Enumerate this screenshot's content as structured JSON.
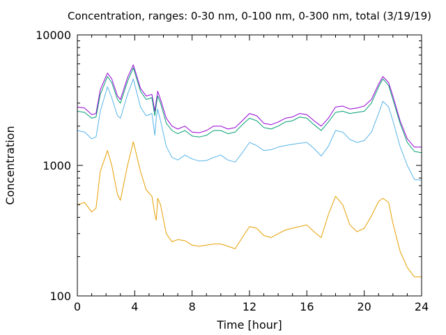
{
  "chart_data": {
    "type": "line",
    "title": "Concentration, ranges: 0-30 nm, 0-100 nm, 0-300 nm, total (3/19/19)",
    "xlabel": "Time [hour]",
    "ylabel": "Concentration",
    "xlim": [
      0,
      24
    ],
    "ylim": [
      100,
      10000
    ],
    "yscale": "log",
    "grid": false,
    "x_ticks": [
      0,
      4,
      8,
      12,
      16,
      20,
      24
    ],
    "x_tick_labels": [
      "0",
      "4",
      "8",
      "12",
      "16",
      "20",
      "24"
    ],
    "y_ticks": [
      100,
      1000,
      10000
    ],
    "y_tick_labels": [
      "100",
      "1000",
      "10000"
    ],
    "series": [
      {
        "color": "#9400d3",
        "x": [
          0,
          0.5,
          1.0,
          1.3,
          1.6,
          2.1,
          2.4,
          2.8,
          3.0,
          3.5,
          3.9,
          4.4,
          4.8,
          5.2,
          5.4,
          5.5,
          5.6,
          5.8,
          6.2,
          6.6,
          7.0,
          7.5,
          8.0,
          8.5,
          9.0,
          9.5,
          10.0,
          10.5,
          11.0,
          11.5,
          12.0,
          12.5,
          13.0,
          13.5,
          14.0,
          14.5,
          15.0,
          15.5,
          16.0,
          16.5,
          17.0,
          17.5,
          18.0,
          18.5,
          19.0,
          19.5,
          20.0,
          20.5,
          21.0,
          21.3,
          21.7,
          22.0,
          22.5,
          23.0,
          23.5,
          24.0
        ],
        "y": [
          2800,
          2750,
          2450,
          2500,
          3800,
          5100,
          4600,
          3400,
          3200,
          4700,
          5900,
          3900,
          3400,
          3500,
          2600,
          3100,
          3700,
          3200,
          2300,
          2000,
          1900,
          2000,
          1800,
          1780,
          1850,
          2000,
          2000,
          1900,
          1950,
          2200,
          2500,
          2400,
          2100,
          2050,
          2150,
          2300,
          2350,
          2500,
          2450,
          2200,
          2000,
          2300,
          2800,
          2850,
          2700,
          2750,
          2850,
          3200,
          4200,
          4800,
          4300,
          3400,
          2200,
          1600,
          1380,
          1380
        ]
      },
      {
        "color": "#009e73",
        "x": [
          0,
          0.5,
          1.0,
          1.3,
          1.6,
          2.1,
          2.4,
          2.8,
          3.0,
          3.5,
          3.9,
          4.4,
          4.8,
          5.2,
          5.4,
          5.5,
          5.6,
          5.8,
          6.2,
          6.6,
          7.0,
          7.5,
          8.0,
          8.5,
          9.0,
          9.5,
          10.0,
          10.5,
          11.0,
          11.5,
          12.0,
          12.5,
          13.0,
          13.5,
          14.0,
          14.5,
          15.0,
          15.5,
          16.0,
          16.5,
          17.0,
          17.5,
          18.0,
          18.5,
          19.0,
          19.5,
          20.0,
          20.5,
          21.0,
          21.3,
          21.7,
          22.0,
          22.5,
          23.0,
          23.5,
          24.0
        ],
        "y": [
          2600,
          2550,
          2300,
          2350,
          3500,
          4800,
          4300,
          3200,
          3000,
          4400,
          5600,
          3700,
          3200,
          3300,
          2400,
          2900,
          3400,
          3000,
          2100,
          1850,
          1750,
          1850,
          1680,
          1650,
          1700,
          1850,
          1850,
          1750,
          1800,
          2050,
          2300,
          2200,
          1950,
          1900,
          2000,
          2150,
          2200,
          2350,
          2300,
          2050,
          1850,
          2150,
          2550,
          2600,
          2500,
          2550,
          2600,
          3000,
          4000,
          4600,
          4100,
          3200,
          2100,
          1500,
          1280,
          1250
        ]
      },
      {
        "color": "#56b4e9",
        "x": [
          0,
          0.5,
          1.0,
          1.3,
          1.6,
          2.1,
          2.4,
          2.8,
          3.0,
          3.5,
          3.9,
          4.4,
          4.8,
          5.2,
          5.4,
          5.5,
          5.6,
          5.8,
          6.2,
          6.6,
          7.0,
          7.5,
          8.0,
          8.5,
          9.0,
          9.5,
          10.0,
          10.5,
          11.0,
          11.5,
          12.0,
          12.5,
          13.0,
          13.5,
          14.0,
          14.5,
          15.0,
          15.5,
          16.0,
          16.5,
          17.0,
          17.5,
          18.0,
          18.5,
          19.0,
          19.5,
          20.0,
          20.5,
          21.0,
          21.3,
          21.7,
          22.0,
          22.5,
          23.0,
          23.5,
          24.0
        ],
        "y": [
          1850,
          1800,
          1600,
          1650,
          2600,
          4000,
          3300,
          2400,
          2300,
          3500,
          4600,
          2800,
          2400,
          2500,
          1700,
          2300,
          2700,
          2200,
          1400,
          1150,
          1100,
          1200,
          1120,
          1080,
          1090,
          1150,
          1200,
          1100,
          1060,
          1250,
          1500,
          1420,
          1300,
          1320,
          1380,
          1420,
          1450,
          1480,
          1500,
          1350,
          1180,
          1400,
          1850,
          1800,
          1580,
          1500,
          1550,
          1800,
          2500,
          3100,
          2800,
          2200,
          1400,
          1000,
          780,
          770
        ]
      },
      {
        "color": "#e69f00",
        "x": [
          0,
          0.5,
          1.0,
          1.3,
          1.6,
          2.1,
          2.4,
          2.8,
          3.0,
          3.5,
          3.9,
          4.4,
          4.8,
          5.2,
          5.4,
          5.5,
          5.6,
          5.8,
          6.2,
          6.6,
          7.0,
          7.5,
          8.0,
          8.5,
          9.0,
          9.5,
          10.0,
          10.5,
          11.0,
          11.5,
          12.0,
          12.5,
          13.0,
          13.5,
          14.0,
          14.5,
          15.0,
          15.5,
          16.0,
          16.5,
          17.0,
          17.5,
          18.0,
          18.5,
          19.0,
          19.5,
          20.0,
          20.5,
          21.0,
          21.3,
          21.7,
          22.0,
          22.5,
          23.0,
          23.5,
          24.0
        ],
        "y": [
          500,
          520,
          440,
          470,
          900,
          1300,
          1000,
          600,
          540,
          1000,
          1520,
          900,
          650,
          580,
          420,
          380,
          560,
          500,
          300,
          260,
          270,
          265,
          245,
          240,
          245,
          250,
          250,
          240,
          230,
          280,
          340,
          330,
          290,
          280,
          300,
          320,
          330,
          340,
          350,
          310,
          280,
          420,
          580,
          500,
          350,
          310,
          330,
          410,
          530,
          560,
          520,
          360,
          220,
          165,
          140,
          140
        ]
      }
    ]
  }
}
